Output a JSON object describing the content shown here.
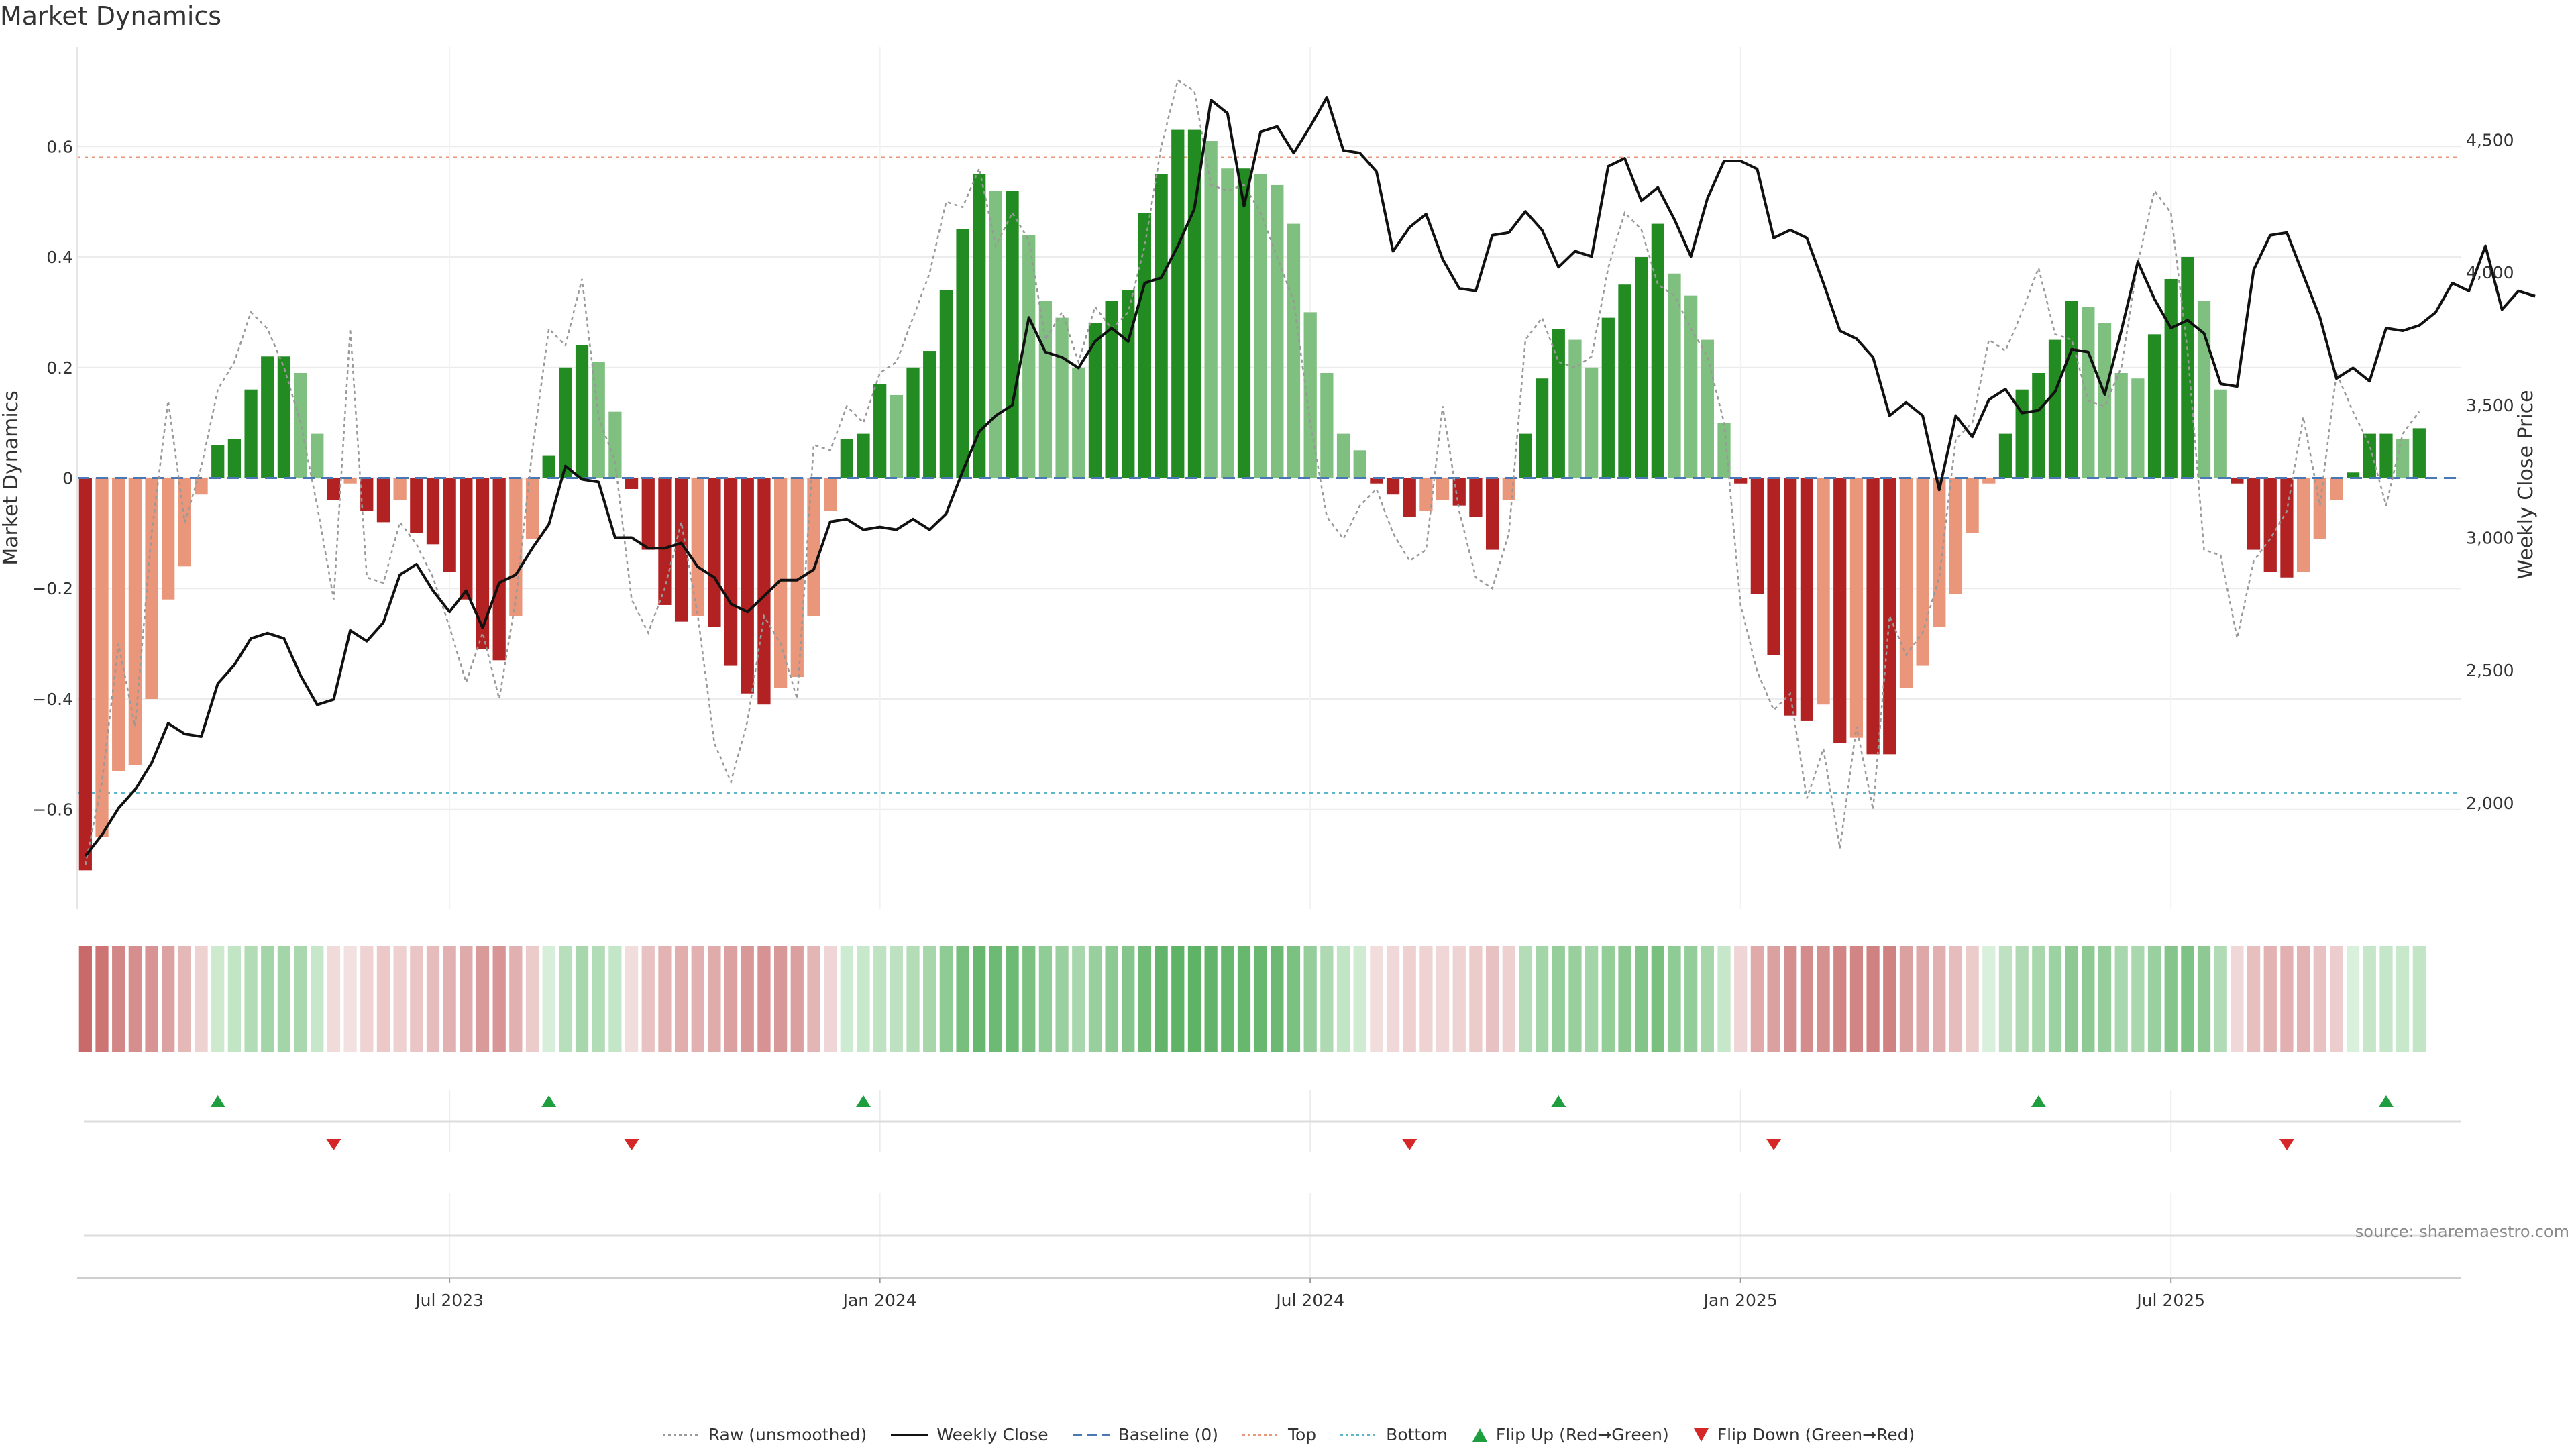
{
  "chart_data": {
    "type": "bar",
    "title": "Market Dynamics",
    "ylabel_left": "Market Dynamics",
    "ylabel_right": "Weekly Close Price",
    "ylim_left": [
      -0.78,
      0.78
    ],
    "yticks_left": [
      -0.6,
      -0.4,
      -0.2,
      0,
      0.2,
      0.4,
      0.6
    ],
    "ytick_labels_left": [
      "−0.6",
      "−0.4",
      "−0.2",
      "0",
      "0.2",
      "0.4",
      "0.6"
    ],
    "ylim_right": [
      1600,
      4850
    ],
    "yticks_right": [
      2000,
      2500,
      3000,
      3500,
      4000,
      4500
    ],
    "ytick_labels_right": [
      "2,000",
      "2,500",
      "3,000",
      "3,500",
      "4,000",
      "4,500"
    ],
    "x_date_ticks": [
      {
        "label": "Jul 2023",
        "week": 22
      },
      {
        "label": "Jan 2024",
        "week": 48
      },
      {
        "label": "Jul 2024",
        "week": 74
      },
      {
        "label": "Jan 2025",
        "week": 100
      },
      {
        "label": "Jul 2025",
        "week": 126
      }
    ],
    "x_range_weeks": [
      0,
      143
    ],
    "top_threshold": 0.58,
    "bottom_threshold": -0.57,
    "baseline": 0,
    "grid": true,
    "legend_position": "bottom-center",
    "smoothed_bars": [
      -0.71,
      -0.65,
      -0.53,
      -0.52,
      -0.4,
      -0.22,
      -0.16,
      -0.03,
      0.06,
      0.07,
      0.16,
      0.22,
      0.22,
      0.19,
      0.08,
      -0.04,
      -0.01,
      -0.06,
      -0.08,
      -0.04,
      -0.1,
      -0.12,
      -0.17,
      -0.22,
      -0.31,
      -0.33,
      -0.25,
      -0.11,
      0.04,
      0.2,
      0.24,
      0.21,
      0.12,
      -0.02,
      -0.13,
      -0.23,
      -0.26,
      -0.25,
      -0.27,
      -0.34,
      -0.39,
      -0.41,
      -0.38,
      -0.36,
      -0.25,
      -0.06,
      0.07,
      0.08,
      0.17,
      0.15,
      0.2,
      0.23,
      0.34,
      0.45,
      0.55,
      0.52,
      0.52,
      0.44,
      0.32,
      0.29,
      0.2,
      0.28,
      0.32,
      0.34,
      0.48,
      0.55,
      0.63,
      0.63,
      0.61,
      0.56,
      0.56,
      0.55,
      0.53,
      0.46,
      0.3,
      0.19,
      0.08,
      0.05,
      -0.01,
      -0.03,
      -0.07,
      -0.06,
      -0.04,
      -0.05,
      -0.07,
      -0.13,
      -0.04,
      0.08,
      0.18,
      0.27,
      0.25,
      0.2,
      0.29,
      0.35,
      0.4,
      0.46,
      0.37,
      0.33,
      0.25,
      0.1,
      -0.01,
      -0.21,
      -0.32,
      -0.43,
      -0.44,
      -0.41,
      -0.48,
      -0.47,
      -0.5,
      -0.5,
      -0.38,
      -0.34,
      -0.27,
      -0.21,
      -0.1,
      -0.01,
      0.08,
      0.16,
      0.19,
      0.25,
      0.32,
      0.31,
      0.28,
      0.19,
      0.18,
      0.26,
      0.36,
      0.4,
      0.32,
      0.16,
      -0.01,
      -0.13,
      -0.17,
      -0.18,
      -0.17,
      -0.11,
      -0.04,
      0.01,
      0.08,
      0.08,
      0.07,
      0.09
    ],
    "bar_colors": {
      "strong_negative": "#b22222",
      "weak_negative": "#e9967a",
      "strong_positive": "#228b22",
      "weak_positive": "#7fbf7f"
    },
    "series": [
      {
        "name": "Raw (unsmoothed)",
        "style": "dotted",
        "color": "#999999",
        "values": [
          -0.7,
          -0.55,
          -0.3,
          -0.45,
          -0.1,
          0.14,
          -0.08,
          0.02,
          0.16,
          0.21,
          0.3,
          0.27,
          0.2,
          0.1,
          -0.05,
          -0.22,
          0.27,
          -0.18,
          -0.19,
          -0.08,
          -0.12,
          -0.18,
          -0.27,
          -0.37,
          -0.28,
          -0.4,
          -0.22,
          0.05,
          0.27,
          0.24,
          0.36,
          0.11,
          0.03,
          -0.22,
          -0.28,
          -0.2,
          -0.08,
          -0.25,
          -0.48,
          -0.55,
          -0.44,
          -0.25,
          -0.3,
          -0.4,
          0.06,
          0.05,
          0.13,
          0.1,
          0.19,
          0.21,
          0.29,
          0.37,
          0.5,
          0.49,
          0.56,
          0.42,
          0.48,
          0.43,
          0.25,
          0.3,
          0.21,
          0.31,
          0.27,
          0.3,
          0.42,
          0.6,
          0.72,
          0.7,
          0.53,
          0.52,
          0.53,
          0.48,
          0.4,
          0.32,
          0.1,
          -0.07,
          -0.11,
          -0.05,
          -0.02,
          -0.1,
          -0.15,
          -0.13,
          0.13,
          -0.06,
          -0.18,
          -0.2,
          -0.1,
          0.25,
          0.29,
          0.21,
          0.2,
          0.22,
          0.38,
          0.48,
          0.45,
          0.35,
          0.33,
          0.27,
          0.22,
          0.1,
          -0.23,
          -0.35,
          -0.42,
          -0.39,
          -0.58,
          -0.49,
          -0.67,
          -0.45,
          -0.6,
          -0.25,
          -0.32,
          -0.28,
          -0.18,
          0.07,
          0.1,
          0.25,
          0.23,
          0.3,
          0.38,
          0.26,
          0.25,
          0.14,
          0.13,
          0.2,
          0.39,
          0.52,
          0.48,
          0.23,
          -0.13,
          -0.14,
          -0.29,
          -0.15,
          -0.11,
          -0.06,
          0.11,
          -0.05,
          0.19,
          0.12,
          0.06,
          -0.05,
          0.08,
          0.12
        ]
      },
      {
        "name": "Weekly Close",
        "style": "solid",
        "color": "#111111",
        "axis": "right",
        "values": [
          1800,
          1880,
          1980,
          2050,
          2150,
          2300,
          2260,
          2250,
          2450,
          2520,
          2620,
          2640,
          2620,
          2480,
          2370,
          2390,
          2650,
          2610,
          2680,
          2860,
          2900,
          2800,
          2720,
          2800,
          2660,
          2830,
          2860,
          2960,
          3050,
          3270,
          3220,
          3210,
          3000,
          3000,
          2960,
          2960,
          2980,
          2890,
          2850,
          2750,
          2720,
          2780,
          2840,
          2840,
          2880,
          3060,
          3070,
          3030,
          3040,
          3030,
          3070,
          3030,
          3090,
          3250,
          3400,
          3460,
          3500,
          3830,
          3700,
          3680,
          3640,
          3740,
          3790,
          3740,
          3960,
          3980,
          4100,
          4240,
          4650,
          4600,
          4250,
          4530,
          4550,
          4450,
          4550,
          4660,
          4460,
          4450,
          4380,
          4080,
          4170,
          4220,
          4050,
          3940,
          3930,
          4140,
          4150,
          4230,
          4160,
          4020,
          4080,
          4060,
          4400,
          4430,
          4270,
          4320,
          4200,
          4060,
          4280,
          4420,
          4420,
          4390,
          4130,
          4160,
          4130,
          3960,
          3780,
          3750,
          3680,
          3460,
          3510,
          3460,
          3180,
          3460,
          3380,
          3520,
          3560,
          3470,
          3480,
          3550,
          3710,
          3700,
          3540,
          3780,
          4040,
          3900,
          3790,
          3820,
          3770,
          3580,
          3570,
          4010,
          4140,
          4150,
          3990,
          3830,
          3600,
          3640,
          3590,
          3790,
          3780,
          3800,
          3850,
          3960,
          3930,
          4100,
          3860,
          3930,
          3910
        ]
      }
    ],
    "ribbon_colors": [
      "#c96a6a",
      "#cd7575",
      "#d28686",
      "#d58e8e",
      "#d89494",
      "#dca1a1",
      "#e5b8b8",
      "#eed2d2",
      "#cdeacf",
      "#c2e5c6",
      "#b2dcb6",
      "#a3d5a8",
      "#a3d5a8",
      "#aad8ae",
      "#c6e7ca",
      "#f1dada",
      "#f3e0e0",
      "#efd3d3",
      "#ecc8c8",
      "#eed0d0",
      "#eac5c5",
      "#e6bcbc",
      "#e2b0b0",
      "#dfaaaa",
      "#d99a9a",
      "#d89595",
      "#e1b0b0",
      "#eccbcb",
      "#d7efda",
      "#b7dfbb",
      "#a9d7ad",
      "#b2dcb6",
      "#c4e6c8",
      "#f2dddd",
      "#e8c2c2",
      "#e3b3b3",
      "#e1adad",
      "#e2b0b0",
      "#e0abab",
      "#dba0a0",
      "#d99898",
      "#d79393",
      "#d89898",
      "#dc9f9f",
      "#e3b5b5",
      "#efd5d5",
      "#cdebd0",
      "#c7e8cb",
      "#bfe2c3",
      "#bde1c1",
      "#b3dcb7",
      "#a7d6ab",
      "#8fcb94",
      "#78bf7e",
      "#68b76f",
      "#6dba74",
      "#6dba74",
      "#7cc182",
      "#90cc95",
      "#9ad0a0",
      "#a9d7ad",
      "#99cf9e",
      "#8dc992",
      "#85c58b",
      "#70bc77",
      "#63b46a",
      "#5fb367",
      "#5fb367",
      "#63b46a",
      "#68b76f",
      "#68b76f",
      "#69b870",
      "#6cb973",
      "#7bc181",
      "#95ce9a",
      "#aed9b2",
      "#c2e5c6",
      "#cfebd2",
      "#f2dddd",
      "#f0d8d8",
      "#eed0d0",
      "#efd3d3",
      "#f0d6d6",
      "#efd3d3",
      "#eccbcb",
      "#e8c2c2",
      "#eed0d0",
      "#b3dcb7",
      "#a2d5a7",
      "#95ce9a",
      "#98cf9d",
      "#a3d5a8",
      "#93cd98",
      "#8bc890",
      "#83c589",
      "#79c07f",
      "#8fcb94",
      "#94cd99",
      "#a6d6aa",
      "#c6e7ca",
      "#efd5d5",
      "#e0aaaa",
      "#dba0a0",
      "#d58e8e",
      "#d38b8b",
      "#d59090",
      "#d28585",
      "#d28585",
      "#d08282",
      "#d08282",
      "#dba0a0",
      "#dfa8a8",
      "#e1afaf",
      "#e6bcbc",
      "#eccbcb",
      "#d9f0dc",
      "#bde1c1",
      "#afdab3",
      "#a8d7ac",
      "#9cd1a1",
      "#8ec993",
      "#8fca94",
      "#95ce9a",
      "#a9d7ad",
      "#aad8ae",
      "#9ad0a0",
      "#85c58b",
      "#7fc285",
      "#8ec993",
      "#b1dbb5",
      "#f0d8d8",
      "#e7bfbf",
      "#e3b3b3",
      "#e2b0b0",
      "#e3b3b3",
      "#e8c2c2",
      "#eccccc",
      "#d9f0dc",
      "#c5e6c9",
      "#c5e6c9",
      "#c8e8cc",
      "#c2e5c6"
    ],
    "flip_up_weeks": [
      8,
      28,
      47,
      89,
      118,
      139
    ],
    "flip_down_weeks": [
      15,
      33,
      80,
      102,
      133
    ],
    "flip_up_color": "#1e9e3e",
    "flip_down_color": "#d62728",
    "legend": [
      {
        "label": "Raw (unsmoothed)",
        "symbol": "dotted-line",
        "color": "#999999"
      },
      {
        "label": "Weekly Close",
        "symbol": "solid-line",
        "color": "#111111"
      },
      {
        "label": "Baseline (0)",
        "symbol": "dashed-line",
        "color": "#4a78b5"
      },
      {
        "label": "Top",
        "symbol": "dotted-line",
        "color": "#e9967a"
      },
      {
        "label": "Bottom",
        "symbol": "dotted-line",
        "color": "#5bb8c9"
      },
      {
        "label": "Flip Up (Red→Green)",
        "symbol": "triangle-up",
        "color": "#1e9e3e"
      },
      {
        "label": "Flip Down (Green→Red)",
        "symbol": "triangle-down",
        "color": "#d62728"
      }
    ]
  },
  "source": "source: sharemaestro.com"
}
